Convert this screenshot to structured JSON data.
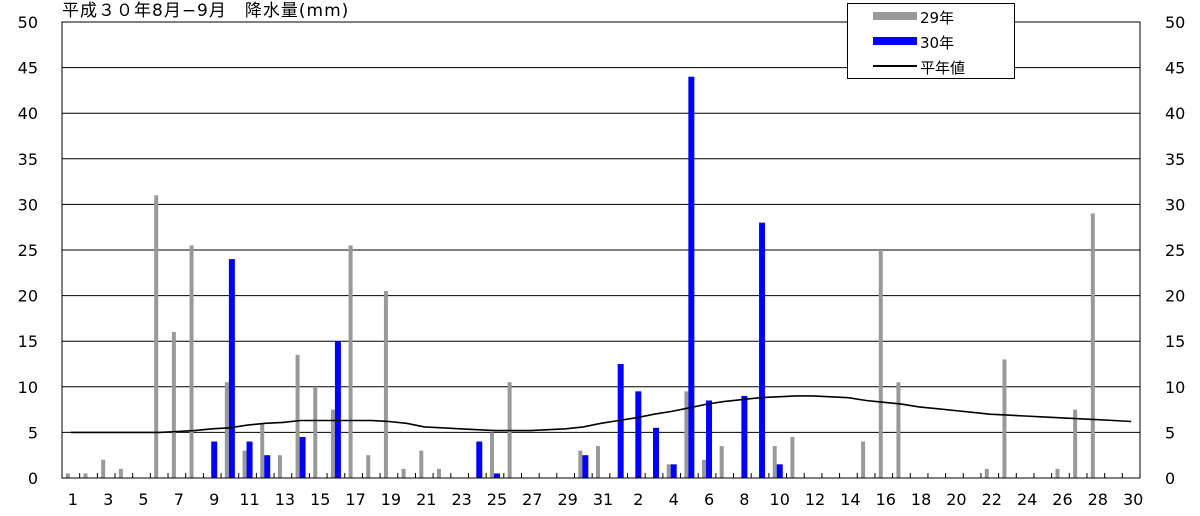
{
  "title": "平成３０年8月−9月　降水量(mm)",
  "colors": {
    "y29": "#999999",
    "y30": "#0000FF",
    "normal": "#000000"
  },
  "legend": {
    "items": [
      {
        "label": "29年",
        "kind": "bar",
        "color": "#999999"
      },
      {
        "label": "30年",
        "kind": "bar",
        "color": "#0000FF"
      },
      {
        "label": "平年値",
        "kind": "line",
        "color": "#000000"
      }
    ],
    "placement": "top-right"
  },
  "chart_data": {
    "type": "bar",
    "title": "平成３０年8月−9月　降水量(mm)",
    "xlabel": "",
    "ylabel": "",
    "ylim": [
      0,
      50
    ],
    "yticks": [
      0,
      5,
      10,
      15,
      20,
      25,
      30,
      35,
      40,
      45,
      50
    ],
    "grid": true,
    "x_tick_labels": [
      "1",
      "3",
      "5",
      "7",
      "9",
      "11",
      "13",
      "15",
      "17",
      "19",
      "21",
      "23",
      "25",
      "27",
      "29",
      "31",
      "2",
      "4",
      "6",
      "8",
      "10",
      "12",
      "14",
      "16",
      "18",
      "20",
      "22",
      "24",
      "26",
      "28",
      "30"
    ],
    "categories": [
      "8/1",
      "8/2",
      "8/3",
      "8/4",
      "8/5",
      "8/6",
      "8/7",
      "8/8",
      "8/9",
      "8/10",
      "8/11",
      "8/12",
      "8/13",
      "8/14",
      "8/15",
      "8/16",
      "8/17",
      "8/18",
      "8/19",
      "8/20",
      "8/21",
      "8/22",
      "8/23",
      "8/24",
      "8/25",
      "8/26",
      "8/27",
      "8/28",
      "8/29",
      "8/30",
      "8/31",
      "9/1",
      "9/2",
      "9/3",
      "9/4",
      "9/5",
      "9/6",
      "9/7",
      "9/8",
      "9/9",
      "9/10",
      "9/11",
      "9/12",
      "9/13",
      "9/14",
      "9/15",
      "9/16",
      "9/17",
      "9/18",
      "9/19",
      "9/20",
      "9/21",
      "9/22",
      "9/23",
      "9/24",
      "9/25",
      "9/26",
      "9/27",
      "9/28",
      "9/29",
      "9/30"
    ],
    "series": [
      {
        "name": "29年",
        "kind": "bar",
        "color": "#999999",
        "values": [
          0.5,
          0.5,
          2,
          1,
          0,
          31,
          16,
          25.5,
          0,
          10.5,
          3,
          6,
          2.5,
          13.5,
          10,
          7.5,
          25.5,
          2.5,
          20.5,
          1,
          3,
          1,
          0,
          0,
          5,
          10.5,
          0,
          0,
          0,
          3,
          3.5,
          0,
          0,
          0,
          1.5,
          9.5,
          2,
          3.5,
          0,
          0,
          3.5,
          4.5,
          0,
          0,
          0,
          4,
          25,
          10.5,
          0,
          0,
          0,
          0,
          1,
          13,
          0,
          0,
          1,
          7.5,
          29,
          0,
          0
        ]
      },
      {
        "name": "30年",
        "kind": "bar",
        "color": "#0000FF",
        "values": [
          0,
          0,
          0,
          0,
          0,
          0,
          0,
          0,
          4,
          24,
          4,
          2.5,
          0,
          4.5,
          0,
          15,
          0,
          0,
          0,
          0,
          0,
          0,
          0,
          4,
          0.5,
          0,
          0,
          0,
          0,
          2.5,
          0,
          12.5,
          9.5,
          5.5,
          1.5,
          44,
          8.5,
          0,
          9,
          28,
          1.5,
          0,
          0,
          0,
          0,
          0,
          0,
          0,
          0,
          0,
          0,
          0,
          0,
          0,
          0,
          0,
          0,
          0,
          0,
          0,
          0
        ]
      },
      {
        "name": "平年値",
        "kind": "line",
        "color": "#000000",
        "values": [
          5,
          5,
          5,
          5,
          5,
          5,
          5.1,
          5.2,
          5.4,
          5.5,
          5.8,
          6,
          6.1,
          6.3,
          6.3,
          6.3,
          6.3,
          6.3,
          6.2,
          6,
          5.6,
          5.5,
          5.4,
          5.3,
          5.2,
          5.2,
          5.2,
          5.3,
          5.4,
          5.6,
          6,
          6.3,
          6.6,
          7,
          7.3,
          7.7,
          8.1,
          8.4,
          8.6,
          8.8,
          8.9,
          9,
          9,
          8.9,
          8.8,
          8.5,
          8.3,
          8.1,
          7.8,
          7.6,
          7.4,
          7.2,
          7,
          6.9,
          6.8,
          6.7,
          6.6,
          6.5,
          6.4,
          6.3,
          6.2
        ]
      }
    ]
  }
}
